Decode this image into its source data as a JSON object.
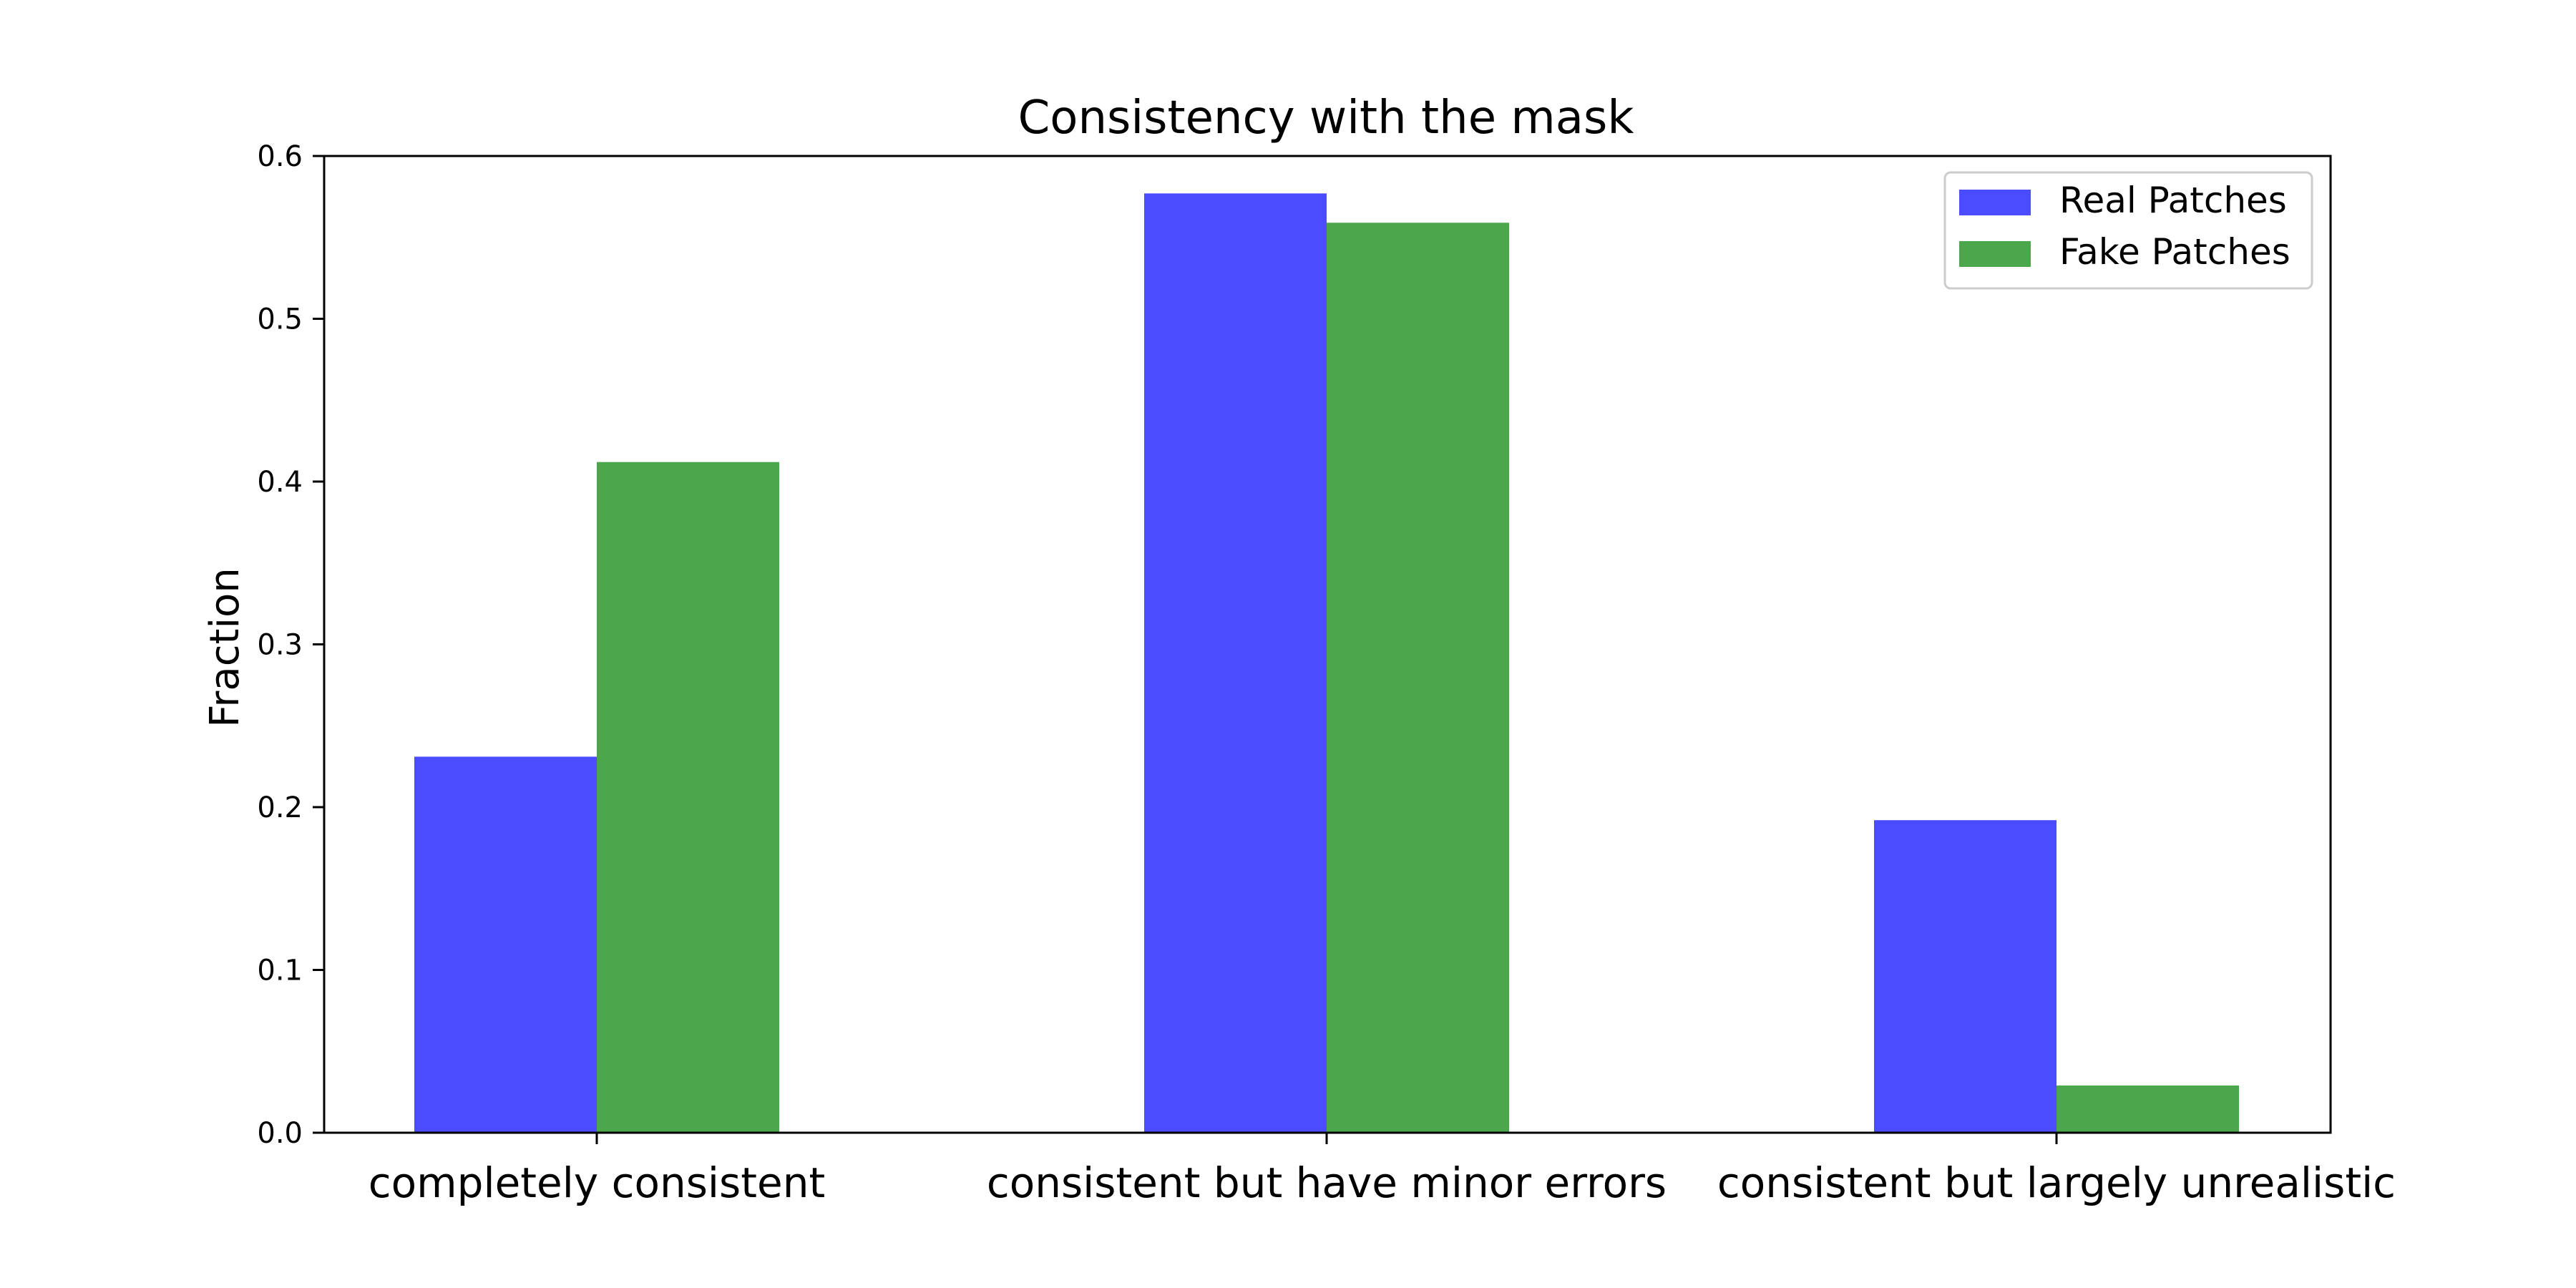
{
  "chart_data": {
    "type": "bar",
    "title": "Consistency with the mask",
    "xlabel": "",
    "ylabel": "Fraction",
    "categories": [
      "completely consistent",
      "consistent but have minor errors",
      "consistent but largely unrealistic"
    ],
    "series": [
      {
        "name": "Real Patches",
        "values": [
          0.231,
          0.577,
          0.192
        ],
        "color": "#4b4bff"
      },
      {
        "name": "Fake Patches",
        "values": [
          0.412,
          0.559,
          0.029
        ],
        "color": "#4ca64c"
      }
    ],
    "ylim": [
      0.0,
      0.6
    ],
    "yticks": [
      "0.0",
      "0.1",
      "0.2",
      "0.3",
      "0.4",
      "0.5",
      "0.6"
    ],
    "grid": false,
    "legend_position": "top-right"
  }
}
